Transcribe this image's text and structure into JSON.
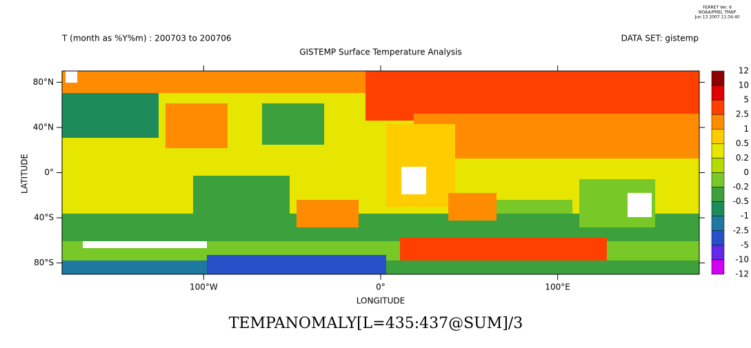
{
  "header": {
    "program": "FERRET Ver. 6",
    "org": "NOAA/PMEL TMAP",
    "timestamp": "Jun 13 2007 11:34:40",
    "time_range": "T (month as %Y%m) : 200703 to 200706",
    "dataset": "DATA SET: gistemp",
    "title": "GISTEMP Surface Temperature Analysis"
  },
  "map": {
    "xlabel": "LONGITUDE",
    "ylabel": "LATITUDE",
    "xlim": [
      -180,
      180
    ],
    "ylim": [
      -90,
      90
    ],
    "xticks": [
      {
        "value": -100,
        "label": "100°W"
      },
      {
        "value": 0,
        "label": "0°"
      },
      {
        "value": 100,
        "label": "100°E"
      }
    ],
    "yticks": [
      {
        "value": 80,
        "label": "80°N"
      },
      {
        "value": 40,
        "label": "40°N"
      },
      {
        "value": 0,
        "label": "0°"
      },
      {
        "value": -40,
        "label": "40°S"
      },
      {
        "value": -80,
        "label": "80°S"
      }
    ]
  },
  "colorbar": {
    "levels": [
      12,
      10,
      5,
      2.5,
      1,
      0.5,
      0.2,
      0,
      -0.2,
      -0.5,
      -1,
      -2.5,
      -5,
      -10,
      -12
    ],
    "colors": [
      "#8b0000",
      "#e00000",
      "#ff4000",
      "#ff8c00",
      "#ffcc00",
      "#e6e600",
      "#b4dc00",
      "#78c828",
      "#3ca03c",
      "#1e8c5a",
      "#1e78a0",
      "#2850c8",
      "#6428e6",
      "#d200f0"
    ]
  },
  "footer": {
    "expression": "TEMPANOMALY[L=435:437@SUM]/3"
  }
}
